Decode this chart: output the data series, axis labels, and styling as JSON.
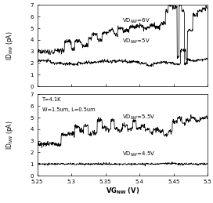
{
  "xlim": [
    5.25,
    5.5
  ],
  "ylim": [
    0,
    7
  ],
  "yticks": [
    0,
    1,
    2,
    3,
    4,
    5,
    6,
    7
  ],
  "xticks": [
    5.25,
    5.3,
    5.35,
    5.4,
    5.45,
    5.5
  ],
  "xtick_labels": [
    "5.25",
    "5.3",
    "5.35",
    "5.4",
    "5.45",
    "5.5"
  ],
  "xlabel": "VG$_{\\mathbf{NW}}$ (V)",
  "ylabel_top": "ID$_{NW}$ (pA)",
  "ylabel_bot": "ID$_{NW}$ (pA)",
  "top_label_high": "VD$_{NW}$=6V",
  "top_label_low": "VD$_{NW}$=5V",
  "bot_label_high": "VD$_{NW}$=5.5V",
  "bot_label_low": "VD$_{NW}$=4.5V",
  "bot_annotation_line1": "T=4.1K",
  "bot_annotation_line2": "W=1.5um, L=0.5um",
  "line_color": "#000000",
  "bg_color": "#ffffff",
  "n_points": 600
}
